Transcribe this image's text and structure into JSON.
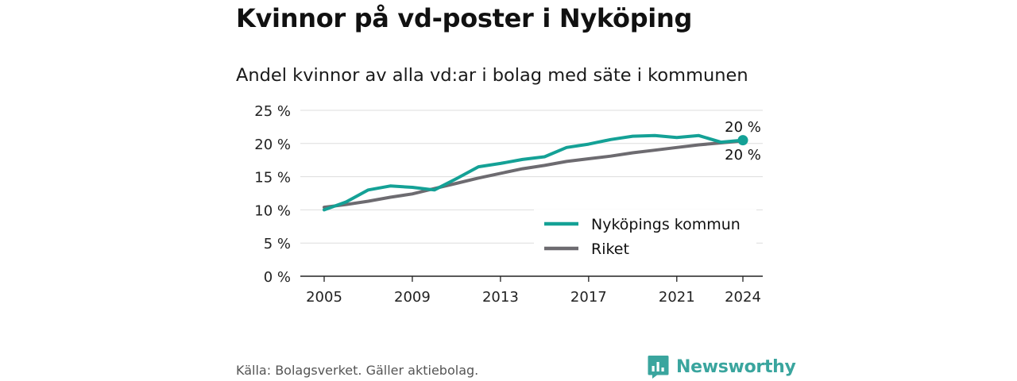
{
  "header": {
    "title": "Kvinnor på vd-poster i Nyköping",
    "subtitle": "Andel kvinnor av alla vd:ar i bolag med säte i kommunen"
  },
  "footer": {
    "source": "Källa: Bolagsverket. Gäller aktiebolag.",
    "brand": "Newsworthy"
  },
  "colors": {
    "nykoping": "#14a196",
    "riket": "#6d6b70",
    "grid": "#dddddd",
    "brand": "#3aa59e"
  },
  "chart_data": {
    "type": "line",
    "title": "Andel kvinnor av alla vd:ar i bolag med säte i kommunen",
    "xlabel": "",
    "ylabel": "",
    "xlim": [
      2005,
      2024
    ],
    "ylim": [
      0,
      25
    ],
    "x_ticks": [
      2005,
      2009,
      2013,
      2017,
      2021,
      2024
    ],
    "x_tick_labels": [
      "2005",
      "2009",
      "2013",
      "2017",
      "2021",
      "2024"
    ],
    "y_ticks": [
      0,
      5,
      10,
      15,
      20,
      25
    ],
    "y_tick_labels": [
      "0 %",
      "5 %",
      "10 %",
      "15 %",
      "20 %",
      "25 %"
    ],
    "grid": true,
    "legend_position": "bottom-right",
    "x": [
      2005,
      2006,
      2007,
      2008,
      2009,
      2010,
      2011,
      2012,
      2013,
      2014,
      2015,
      2016,
      2017,
      2018,
      2019,
      2020,
      2021,
      2022,
      2023,
      2024
    ],
    "series": [
      {
        "name": "Nyköpings kommun",
        "color": "#14a196",
        "values": [
          10.0,
          11.2,
          13.0,
          13.6,
          13.4,
          13.0,
          14.7,
          16.5,
          17.0,
          17.6,
          18.0,
          19.4,
          19.9,
          20.6,
          21.1,
          21.2,
          20.9,
          21.2,
          20.2,
          20.5
        ],
        "end_label": "20 %"
      },
      {
        "name": "Riket",
        "color": "#6d6b70",
        "values": [
          10.4,
          10.8,
          11.3,
          11.9,
          12.4,
          13.2,
          14.0,
          14.8,
          15.5,
          16.2,
          16.7,
          17.3,
          17.7,
          18.1,
          18.6,
          19.0,
          19.4,
          19.8,
          20.1,
          20.4
        ],
        "end_label": "20 %"
      }
    ]
  }
}
